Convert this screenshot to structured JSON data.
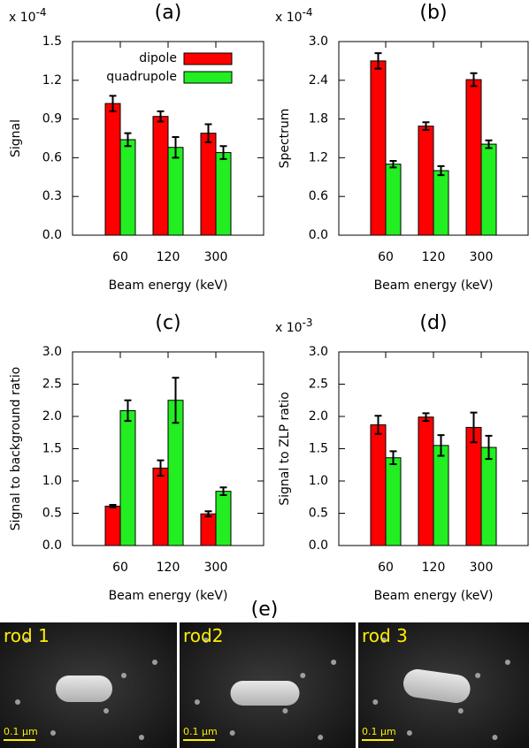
{
  "chart_data": [
    {
      "type": "bar",
      "title": "(a)",
      "xlabel": "Beam energy (keV)",
      "ylabel": "Signal",
      "y_multiplier": {
        "base": "x 10",
        "exponent": "-4"
      },
      "categories": [
        "60",
        "120",
        "300"
      ],
      "series": [
        {
          "name": "dipole",
          "color": "#ff0000",
          "values": [
            1.02,
            0.92,
            0.79
          ],
          "errors": [
            0.06,
            0.04,
            0.07
          ]
        },
        {
          "name": "quadrupole",
          "color": "#22ee22",
          "values": [
            0.74,
            0.68,
            0.64
          ],
          "errors": [
            0.05,
            0.08,
            0.05
          ]
        }
      ],
      "ylim": [
        0,
        1.5
      ],
      "yticks": [
        {
          "value": 0,
          "label": "0.0"
        },
        0.3,
        0.6,
        0.9,
        1.2,
        1.5
      ],
      "legend": "upper right"
    },
    {
      "type": "bar",
      "title": "(b)",
      "xlabel": "Beam energy (keV)",
      "ylabel": "Spectrum",
      "y_multiplier": {
        "base": "x 10",
        "exponent": "-4"
      },
      "categories": [
        "60",
        "120",
        "300"
      ],
      "series": [
        {
          "color": "#ff0000",
          "values": [
            2.7,
            1.69,
            2.41
          ],
          "errors": [
            0.12,
            0.06,
            0.1
          ]
        },
        {
          "color": "#22ee22",
          "values": [
            1.1,
            1.0,
            1.41
          ],
          "errors": [
            0.05,
            0.07,
            0.06
          ]
        }
      ],
      "ylim": [
        0,
        3
      ],
      "yticks": [
        {
          "value": 0,
          "label": "0.0"
        },
        0.6,
        1.2,
        1.8,
        2.4,
        {
          "value": 3,
          "label": "3.0"
        }
      ]
    },
    {
      "type": "bar",
      "title": "(c)",
      "xlabel": "Beam energy (keV)",
      "ylabel": "Signal to background ratio",
      "categories": [
        "60",
        "120",
        "300"
      ],
      "series": [
        {
          "color": "#ff0000",
          "values": [
            0.61,
            1.2,
            0.49
          ],
          "errors": [
            0.02,
            0.12,
            0.04
          ]
        },
        {
          "color": "#22ee22",
          "values": [
            2.09,
            2.25,
            0.84
          ],
          "errors": [
            0.16,
            0.35,
            0.06
          ]
        }
      ],
      "ylim": [
        0,
        3
      ],
      "yticks": [
        {
          "value": 0,
          "label": "0.0"
        },
        0.5,
        {
          "value": 1,
          "label": "1.0"
        },
        1.5,
        {
          "value": 2,
          "label": "2.0"
        },
        2.5,
        {
          "value": 3,
          "label": "3.0"
        }
      ]
    },
    {
      "type": "bar",
      "title": "(d)",
      "xlabel": "Beam energy (keV)",
      "ylabel": "Signal to ZLP ratio",
      "y_multiplier": {
        "base": "x 10",
        "exponent": "-3"
      },
      "categories": [
        "60",
        "120",
        "300"
      ],
      "series": [
        {
          "color": "#ff0000",
          "values": [
            1.87,
            1.99,
            1.83
          ],
          "errors": [
            0.14,
            0.06,
            0.23
          ]
        },
        {
          "color": "#22ee22",
          "values": [
            1.36,
            1.55,
            1.52
          ],
          "errors": [
            0.1,
            0.16,
            0.18
          ]
        }
      ],
      "ylim": [
        0,
        3
      ],
      "yticks": [
        {
          "value": 0,
          "label": "0.0"
        },
        0.5,
        {
          "value": 1,
          "label": "1.0"
        },
        1.5,
        {
          "value": 2,
          "label": "2.0"
        },
        2.5,
        {
          "value": 3,
          "label": "3.0"
        }
      ]
    }
  ],
  "image_panel": {
    "label": "(e)",
    "images": [
      {
        "label": "rod 1",
        "scale_bar": "0.1 μm"
      },
      {
        "label": "rod2",
        "scale_bar": "0.1 μm"
      },
      {
        "label": "rod 3",
        "scale_bar": "0.1 μm"
      }
    ]
  }
}
